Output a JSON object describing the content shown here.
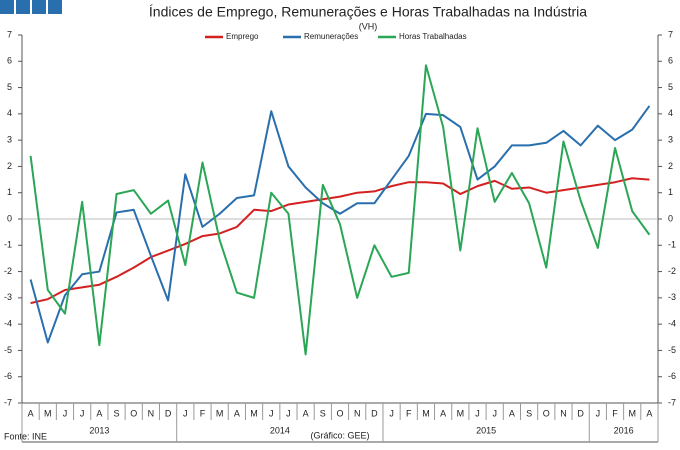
{
  "chart_data": {
    "type": "line",
    "title": "Índices de Emprego, Remunerações e Horas Trabalhadas na Indústria",
    "subtitle": "(VH)",
    "categories": [
      "A",
      "M",
      "J",
      "J",
      "A",
      "S",
      "O",
      "N",
      "D",
      "J",
      "F",
      "M",
      "A",
      "M",
      "J",
      "J",
      "A",
      "S",
      "O",
      "N",
      "D",
      "J",
      "F",
      "M",
      "A",
      "M",
      "J",
      "J",
      "A",
      "S",
      "O",
      "N",
      "D",
      "J",
      "F",
      "M",
      "A"
    ],
    "year_labels": [
      "2013",
      "2014",
      "2015",
      "2016"
    ],
    "series": [
      {
        "name": "Emprego",
        "color": "#d42020",
        "values": [
          -3.2,
          -3.05,
          -2.7,
          -2.6,
          -2.5,
          -2.2,
          -1.85,
          -1.45,
          -1.2,
          -0.95,
          -0.65,
          -0.55,
          -0.3,
          0.35,
          0.3,
          0.55,
          0.65,
          0.75,
          0.85,
          1.0,
          1.05,
          1.25,
          1.4,
          1.4,
          1.35,
          0.95,
          1.25,
          1.45,
          1.15,
          1.2,
          1.0,
          1.1,
          1.2,
          1.3,
          1.4,
          1.55,
          1.5
        ]
      },
      {
        "name": "Remunerações",
        "color": "#2a6fad",
        "values": [
          -2.3,
          -4.7,
          -2.9,
          -2.1,
          -2.0,
          0.25,
          0.35,
          -1.4,
          -3.1,
          1.7,
          -0.3,
          0.2,
          0.8,
          0.9,
          4.1,
          2.0,
          1.2,
          0.6,
          0.2,
          0.6,
          0.6,
          1.5,
          2.4,
          4.0,
          3.95,
          3.5,
          1.5,
          2.0,
          2.8,
          2.8,
          2.9,
          3.35,
          2.8,
          3.55,
          3.0,
          3.4,
          4.3
        ]
      },
      {
        "name": "Horas Trabalhadas",
        "color": "#2aa655",
        "values": [
          2.4,
          -2.7,
          -3.6,
          0.65,
          -4.8,
          0.95,
          1.1,
          0.2,
          0.7,
          -1.75,
          2.15,
          -0.8,
          -2.8,
          -3.0,
          1.0,
          0.2,
          -5.15,
          1.3,
          -0.2,
          -3.0,
          -1.0,
          -2.2,
          -2.05,
          5.85,
          3.5,
          -1.2,
          3.45,
          0.65,
          1.75,
          0.6,
          -1.85,
          2.95,
          0.7,
          -1.1,
          2.7,
          0.3,
          -0.6
        ]
      }
    ],
    "ylim": [
      -7,
      7
    ],
    "yticks": [
      -7,
      -6,
      -5,
      -4,
      -3,
      -2,
      -1,
      0,
      1,
      2,
      3,
      4,
      5,
      6,
      7
    ],
    "source": "Fonte: INE",
    "credit": "(Gráfico: GEE)"
  }
}
